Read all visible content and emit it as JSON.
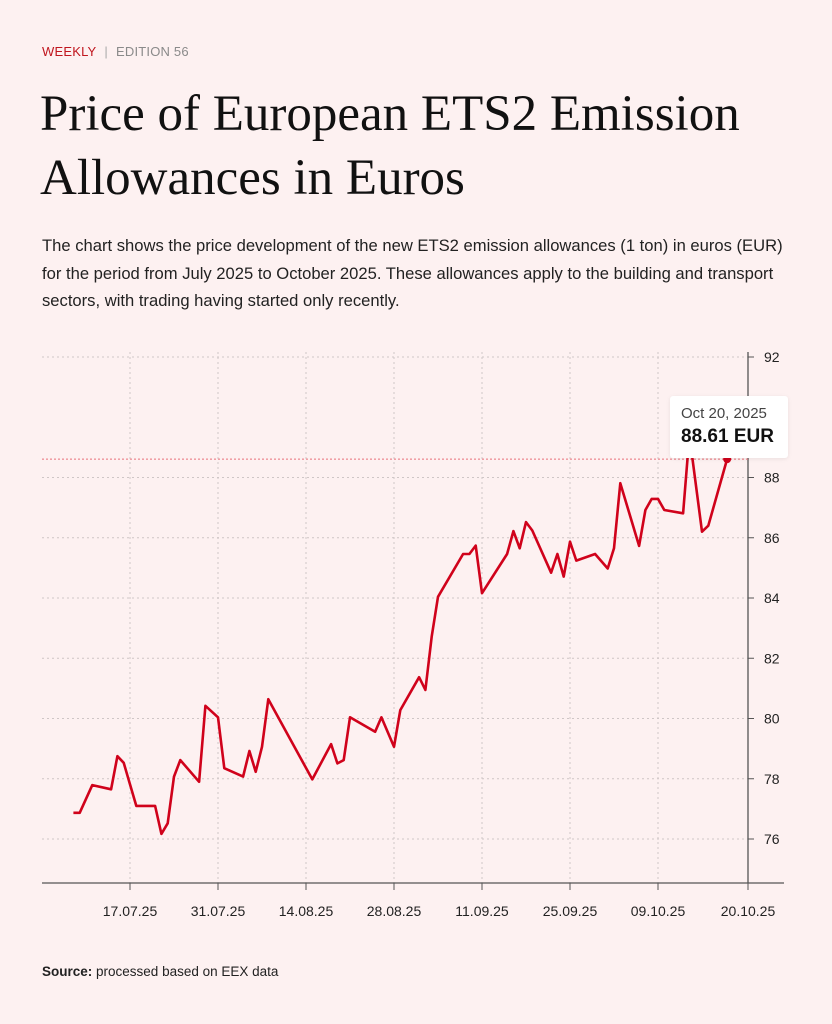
{
  "header": {
    "kicker": "WEEKLY",
    "separator": "|",
    "edition": "EDITION 56"
  },
  "title": "Price of European ETS2 Emission Allowances in Euros",
  "description": "The chart shows the price development of the new ETS2 emission allowances (1 ton) in euros (EUR) for the period from July 2025 to October 2025. These allowances apply to the building and transport sectors, with trading having started only recently.",
  "source": {
    "label": "Source:",
    "text": "processed based on EEX data"
  },
  "tooltip": {
    "date": "Oct 20, 2025",
    "value": "88.61 EUR"
  },
  "colors": {
    "line": "#d0021b",
    "background": "#fdf1f1",
    "grid": "#cfc6c6",
    "axis": "#555555"
  },
  "chart_data": {
    "type": "line",
    "title": "",
    "xlabel": "",
    "ylabel": "",
    "ylim": [
      74.5,
      92
    ],
    "yticks": [
      76,
      78,
      80,
      82,
      84,
      86,
      88,
      92
    ],
    "ytick_labels": [
      "76",
      "78",
      "80",
      "82",
      "84",
      "86",
      "88",
      "92"
    ],
    "y_axis_position": "right",
    "grid": true,
    "xticks": [
      {
        "label": "17.07.25",
        "date": "2025-07-17"
      },
      {
        "label": "31.07.25",
        "date": "2025-07-31"
      },
      {
        "label": "14.08.25",
        "date": "2025-08-14"
      },
      {
        "label": "28.08.25",
        "date": "2025-08-28"
      },
      {
        "label": "11.09.25",
        "date": "2025-09-11"
      },
      {
        "label": "25.09.25",
        "date": "2025-09-25"
      },
      {
        "label": "09.10.25",
        "date": "2025-10-09"
      },
      {
        "label": "20.10.25",
        "date": "2025-10-20"
      }
    ],
    "highlight": {
      "date": "2025-10-20",
      "value": 88.61
    },
    "series": [
      {
        "points": [
          [
            "2025-07-08",
            76.87
          ],
          [
            "2025-07-09",
            76.87
          ],
          [
            "2025-07-11",
            77.79
          ],
          [
            "2025-07-14",
            77.65
          ],
          [
            "2025-07-15",
            78.75
          ],
          [
            "2025-07-16",
            78.53
          ],
          [
            "2025-07-18",
            77.1
          ],
          [
            "2025-07-21",
            77.1
          ],
          [
            "2025-07-22",
            76.17
          ],
          [
            "2025-07-23",
            76.52
          ],
          [
            "2025-07-24",
            78.07
          ],
          [
            "2025-07-25",
            78.62
          ],
          [
            "2025-07-28",
            77.9
          ],
          [
            "2025-07-29",
            80.42
          ],
          [
            "2025-07-31",
            80.04
          ],
          [
            "2025-08-01",
            78.35
          ],
          [
            "2025-08-04",
            78.07
          ],
          [
            "2025-08-05",
            78.92
          ],
          [
            "2025-08-06",
            78.23
          ],
          [
            "2025-08-07",
            79.06
          ],
          [
            "2025-08-08",
            80.64
          ],
          [
            "2025-08-15",
            77.98
          ],
          [
            "2025-08-18",
            79.15
          ],
          [
            "2025-08-19",
            78.51
          ],
          [
            "2025-08-20",
            78.62
          ],
          [
            "2025-08-21",
            80.04
          ],
          [
            "2025-08-25",
            79.56
          ],
          [
            "2025-08-26",
            80.04
          ],
          [
            "2025-08-28",
            79.06
          ],
          [
            "2025-08-29",
            80.28
          ],
          [
            "2025-09-01",
            81.37
          ],
          [
            "2025-09-02",
            80.95
          ],
          [
            "2025-09-03",
            82.72
          ],
          [
            "2025-09-04",
            84.04
          ],
          [
            "2025-09-08",
            85.46
          ],
          [
            "2025-09-09",
            85.46
          ],
          [
            "2025-09-10",
            85.74
          ],
          [
            "2025-09-11",
            84.16
          ],
          [
            "2025-09-15",
            85.46
          ],
          [
            "2025-09-16",
            86.22
          ],
          [
            "2025-09-17",
            85.65
          ],
          [
            "2025-09-18",
            86.52
          ],
          [
            "2025-09-19",
            86.24
          ],
          [
            "2025-09-22",
            84.84
          ],
          [
            "2025-09-23",
            85.46
          ],
          [
            "2025-09-24",
            84.71
          ],
          [
            "2025-09-25",
            85.87
          ],
          [
            "2025-09-26",
            85.24
          ],
          [
            "2025-09-29",
            85.46
          ],
          [
            "2025-10-01",
            84.98
          ],
          [
            "2025-10-02",
            85.65
          ],
          [
            "2025-10-03",
            87.81
          ],
          [
            "2025-10-06",
            85.73
          ],
          [
            "2025-10-07",
            86.92
          ],
          [
            "2025-10-08",
            87.29
          ],
          [
            "2025-10-09",
            87.29
          ],
          [
            "2025-10-10",
            86.92
          ],
          [
            "2025-10-13",
            86.81
          ],
          [
            "2025-10-14",
            89.4
          ],
          [
            "2025-10-16",
            86.2
          ],
          [
            "2025-10-17",
            86.4
          ],
          [
            "2025-10-20",
            88.61
          ]
        ]
      }
    ]
  }
}
